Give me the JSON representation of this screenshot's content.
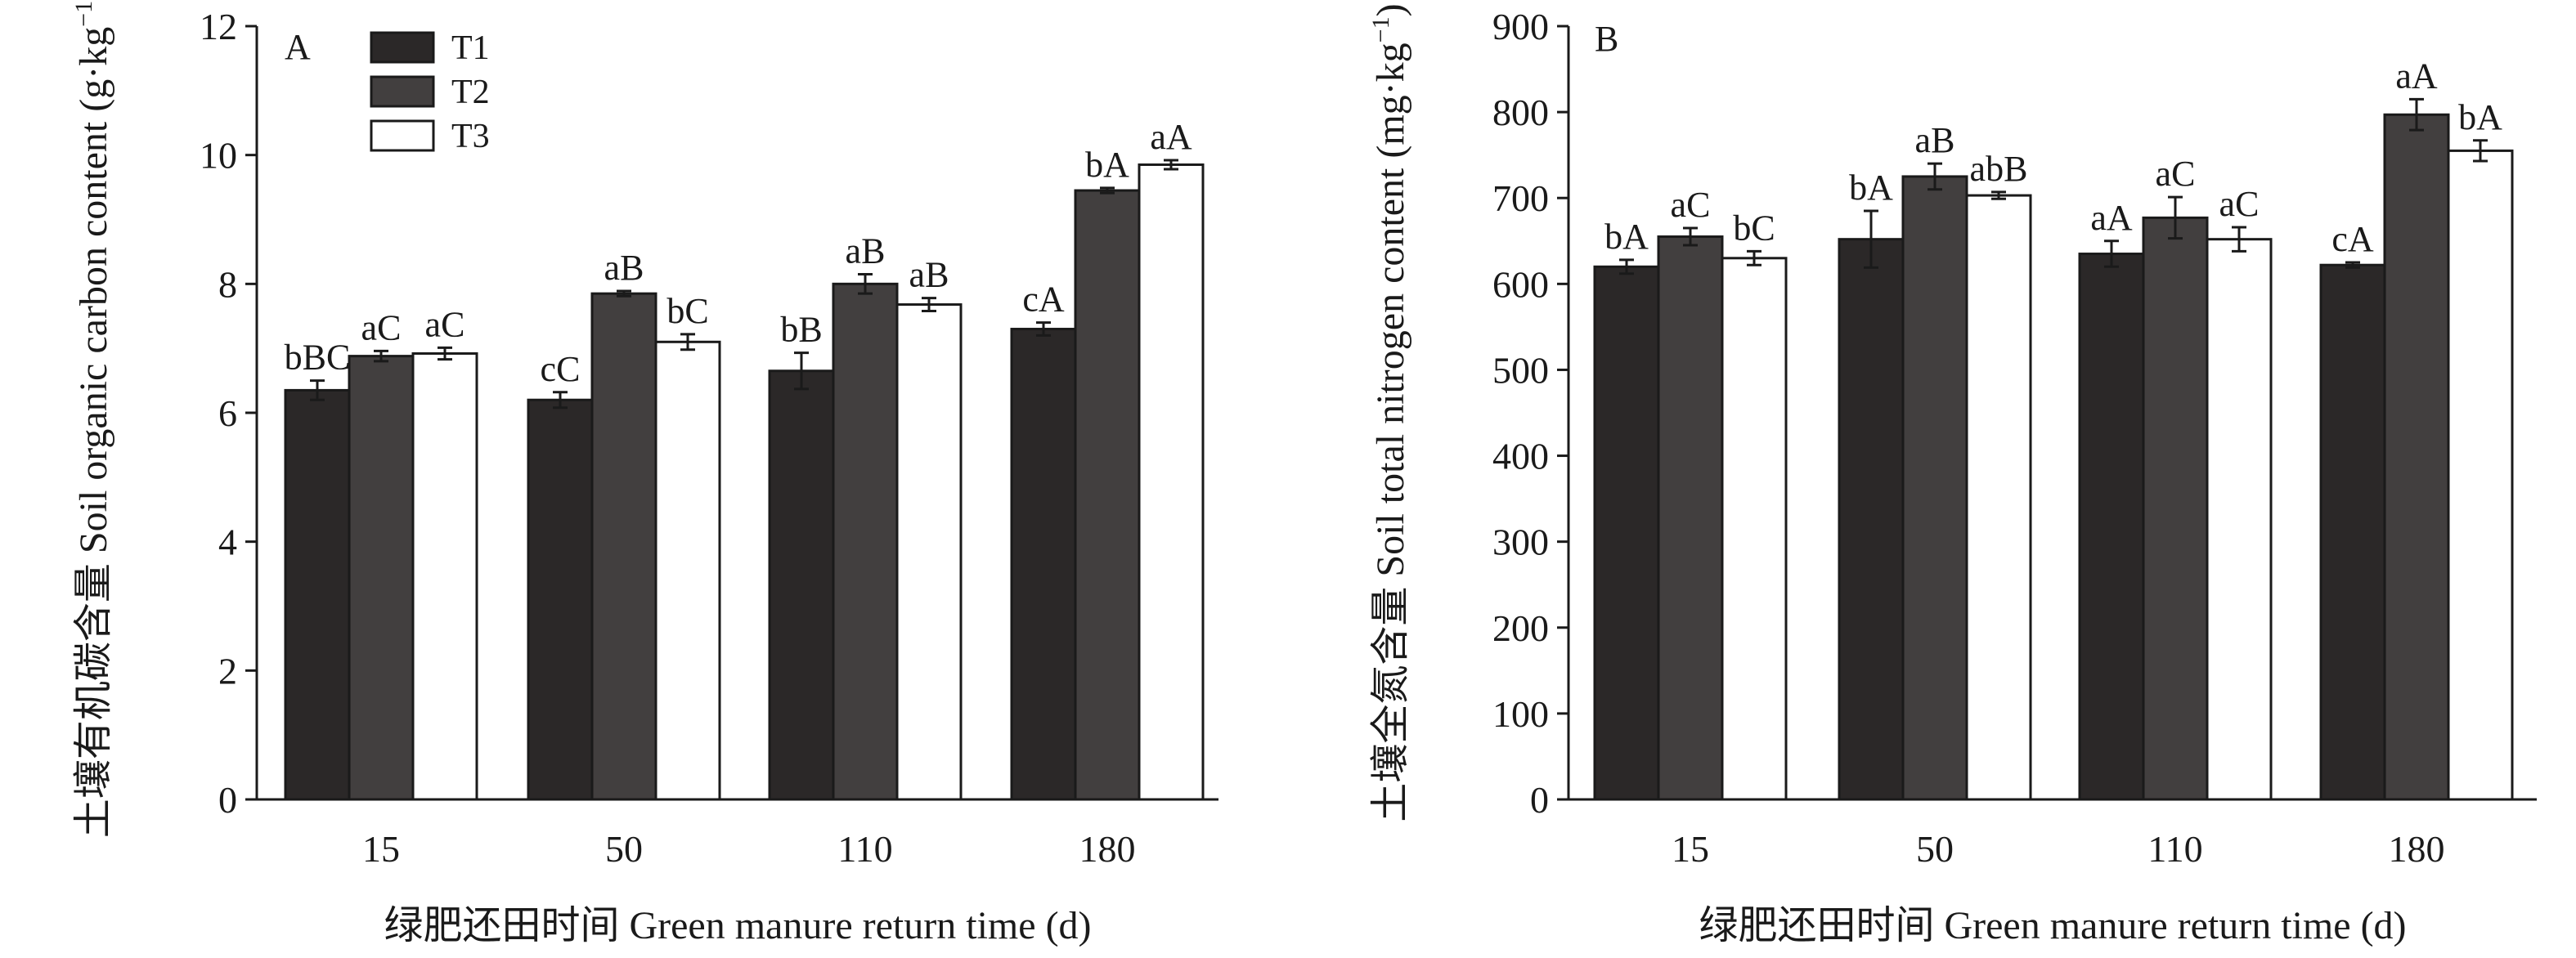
{
  "chart_data": [
    {
      "type": "bar",
      "panel_label": "A",
      "ylabel": "土壤有机碳含量 Soil organic carbon content (g·kg⁻¹)",
      "ylabel_cn": "土壤有机碳含量",
      "ylabel_en": "Soil organic carbon content (g·kg",
      "ylabel_exp": "−1",
      "ylabel_close": ")",
      "xlabel": "绿肥还田时间 Green manure return time (d)",
      "ylim": [
        0,
        12
      ],
      "yticks": [
        0,
        2,
        4,
        6,
        8,
        10,
        12
      ],
      "categories": [
        "15",
        "50",
        "110",
        "180"
      ],
      "series": [
        {
          "name": "T1",
          "color": "#2b2828",
          "values": [
            6.35,
            6.2,
            6.65,
            7.3
          ],
          "errors": [
            0.15,
            0.12,
            0.28,
            0.1
          ],
          "labels": [
            "bBC",
            "cC",
            "bB",
            "cA"
          ]
        },
        {
          "name": "T2",
          "color": "#423f3f",
          "values": [
            6.88,
            7.85,
            8.0,
            9.45
          ],
          "errors": [
            0.08,
            0.04,
            0.15,
            0.04
          ],
          "labels": [
            "aC",
            "aB",
            "aB",
            "bA"
          ]
        },
        {
          "name": "T3",
          "color": "#ffffff",
          "values": [
            6.92,
            7.1,
            7.68,
            9.85
          ],
          "errors": [
            0.09,
            0.12,
            0.1,
            0.07
          ],
          "labels": [
            "aC",
            "bC",
            "aB",
            "aA"
          ]
        }
      ],
      "legend": {
        "position": "top-left",
        "entries": [
          "T1",
          "T2",
          "T3"
        ]
      }
    },
    {
      "type": "bar",
      "panel_label": "B",
      "ylabel": "土壤全氮含量 Soil total nitrogen content (mg·kg⁻¹)",
      "ylabel_cn": "土壤全氮含量",
      "ylabel_en": "Soil total nitrogen content (mg·kg",
      "ylabel_exp": "−1",
      "ylabel_close": ")",
      "xlabel": "绿肥还田时间 Green manure return time (d)",
      "ylim": [
        0,
        900
      ],
      "yticks": [
        0,
        100,
        200,
        300,
        400,
        500,
        600,
        700,
        800,
        900
      ],
      "categories": [
        "15",
        "50",
        "110",
        "180"
      ],
      "series": [
        {
          "name": "T1",
          "color": "#2b2828",
          "values": [
            620,
            652,
            635,
            622
          ],
          "errors": [
            8,
            33,
            15,
            3
          ],
          "labels": [
            "bA",
            "bA",
            "aA",
            "cA"
          ]
        },
        {
          "name": "T2",
          "color": "#423f3f",
          "values": [
            655,
            725,
            677,
            797
          ],
          "errors": [
            10,
            15,
            24,
            18
          ],
          "labels": [
            "aC",
            "aB",
            "aC",
            "aA"
          ]
        },
        {
          "name": "T3",
          "color": "#ffffff",
          "values": [
            630,
            703,
            652,
            755
          ],
          "errors": [
            8,
            4,
            14,
            12
          ],
          "labels": [
            "bC",
            "abB",
            "aC",
            "bA"
          ]
        }
      ]
    }
  ]
}
